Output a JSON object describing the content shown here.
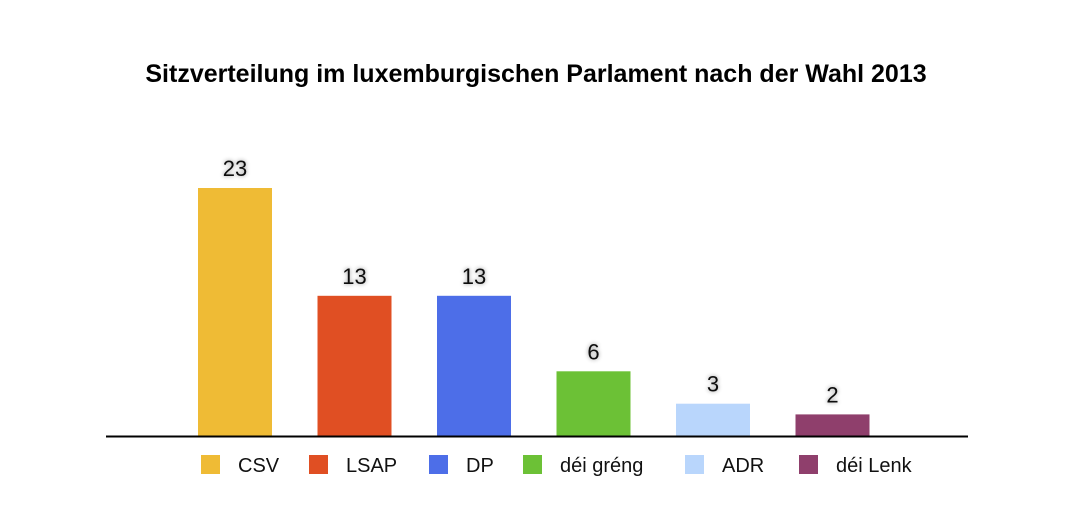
{
  "chart_data": {
    "type": "bar",
    "title": "Sitzverteilung im luxemburgischen Parlament nach der Wahl 2013",
    "categories": [
      "CSV",
      "LSAP",
      "DP",
      "déi gréng",
      "ADR",
      "déi Lenk"
    ],
    "values": [
      23,
      13,
      13,
      6,
      3,
      2
    ],
    "colors": [
      "#EFBB35",
      "#E04F23",
      "#4D6EE8",
      "#6CC136",
      "#B9D6FC",
      "#8F3F6C"
    ],
    "data_labels": [
      "23",
      "13",
      "13",
      "6",
      "3",
      "2"
    ],
    "xlabel": "",
    "ylabel": "",
    "ylim": [
      0,
      23
    ],
    "grid": false,
    "legend_position": "bottom"
  }
}
